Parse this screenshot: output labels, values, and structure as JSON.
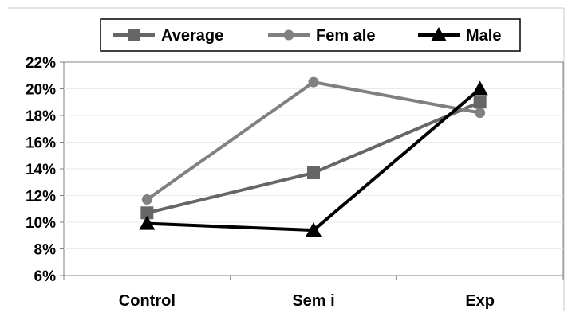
{
  "chart_data": {
    "type": "line",
    "title": "",
    "xlabel": "",
    "ylabel": "",
    "categories": [
      "Control",
      "Sem i",
      "Exp"
    ],
    "yticks": [
      "6%",
      "8%",
      "10%",
      "12%",
      "14%",
      "16%",
      "18%",
      "20%",
      "22%"
    ],
    "ylim": [
      6,
      22
    ],
    "grid": "horizontal",
    "legend_position": "top",
    "series": [
      {
        "name": "Average",
        "values": [
          10.7,
          13.7,
          19.0
        ],
        "color": "#666666",
        "marker": "square"
      },
      {
        "name": "Fem ale",
        "values": [
          11.7,
          20.5,
          18.2
        ],
        "color": "#808080",
        "marker": "circle"
      },
      {
        "name": "Male",
        "values": [
          9.9,
          9.4,
          20.0
        ],
        "color": "#000000",
        "marker": "triangle"
      }
    ]
  }
}
